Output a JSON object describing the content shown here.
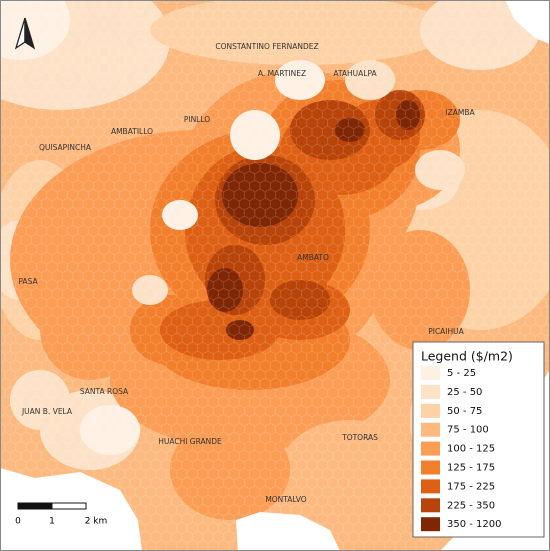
{
  "map": {
    "places": [
      "CONSTANTINO FERNANDEZ",
      "A. MARTINEZ",
      "ATAHUALPA",
      "IZAMBA",
      "PINLLO",
      "AMBATILLO",
      "QUISAPINCHA",
      "AMBATO",
      "PASA",
      "PICAIHUA",
      "SANTA ROSA",
      "JUAN B. VELA",
      "HUACHI GRANDE",
      "TOTORAS",
      "MONTALVO"
    ],
    "legend": {
      "title": "Legend ($/m2)",
      "items": [
        {
          "label": "5 - 25",
          "color": "#fef1e4"
        },
        {
          "label": "25 - 50",
          "color": "#fde2c7"
        },
        {
          "label": "50 - 75",
          "color": "#fdd2a6"
        },
        {
          "label": "75 - 100",
          "color": "#fdba80"
        },
        {
          "label": "100 - 125",
          "color": "#fb9d55"
        },
        {
          "label": "125 - 175",
          "color": "#f27f2c"
        },
        {
          "label": "175 - 225",
          "color": "#de6014"
        },
        {
          "label": "225 - 350",
          "color": "#b84409"
        },
        {
          "label": "350 - 1200",
          "color": "#7f2704"
        }
      ]
    },
    "scale": [
      "0",
      "1",
      "2 km"
    ]
  }
}
